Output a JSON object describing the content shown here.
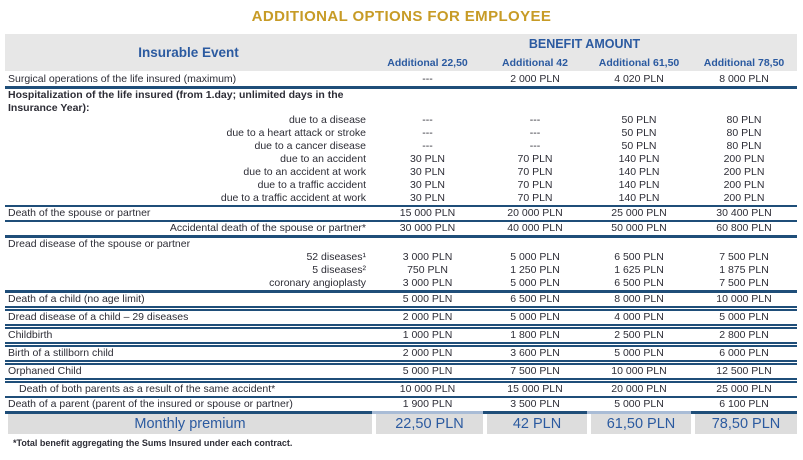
{
  "title": "ADDITIONAL OPTIONS FOR EMPLOYEE",
  "colors": {
    "title_gold": "#C79B26",
    "header_blue": "#2B5AA0",
    "border_navy": "#1F4E79",
    "border_light": "#A9BCD6",
    "header_band_gray": "#E7E7E7",
    "premium_band_gray": "#DDDDDD",
    "text": "#2D2D36"
  },
  "table": {
    "header": {
      "insurable_event": "Insurable Event",
      "benefit_amount": "BENEFIT AMOUNT",
      "columns": [
        "Additional 22,50",
        "Additional 42",
        "Additional 61,50",
        "Additional 78,50"
      ]
    },
    "rows": [
      {
        "label": "Surgical operations of the life insured (maximum)",
        "align": "left",
        "values": [
          "---",
          "2 000 PLN",
          "4 020 PLN",
          "8 000 PLN"
        ],
        "bb": "s3"
      },
      {
        "label": "Hospitalization of the life insured (from 1.day; unlimited days in the Insurance Year):",
        "align": "left",
        "bold": true,
        "values": []
      },
      {
        "label": "due to a disease",
        "align": "right",
        "values": [
          "---",
          "---",
          "50 PLN",
          "80 PLN"
        ]
      },
      {
        "label": "due to a heart attack or stroke",
        "align": "right",
        "values": [
          "---",
          "---",
          "50 PLN",
          "80 PLN"
        ]
      },
      {
        "label": "due to a cancer disease",
        "align": "right",
        "values": [
          "---",
          "---",
          "50 PLN",
          "80 PLN"
        ]
      },
      {
        "label": "due to an accident",
        "align": "right",
        "values": [
          "30 PLN",
          "70 PLN",
          "140 PLN",
          "200 PLN"
        ]
      },
      {
        "label": "due to an accident at work",
        "align": "right",
        "values": [
          "30 PLN",
          "70 PLN",
          "140 PLN",
          "200 PLN"
        ]
      },
      {
        "label": "due to a traffic accident",
        "align": "right",
        "values": [
          "30 PLN",
          "70 PLN",
          "140 PLN",
          "200 PLN"
        ]
      },
      {
        "label": "due to a traffic accident at work",
        "align": "right",
        "values": [
          "30 PLN",
          "70 PLN",
          "140 PLN",
          "200 PLN"
        ]
      },
      {
        "label": "Death of the spouse or partner",
        "align": "left",
        "values": [
          "15 000 PLN",
          "20 000 PLN",
          "25 000 PLN",
          "30 400 PLN"
        ],
        "bt": "s2"
      },
      {
        "label": "Accidental death of the spouse or partner*",
        "align": "right",
        "values": [
          "30 000 PLN",
          "40 000 PLN",
          "50 000 PLN",
          "60 800 PLN"
        ],
        "bt": "s2",
        "bb": "s3"
      },
      {
        "label": "Dread disease of the spouse or partner",
        "align": "left",
        "values": []
      },
      {
        "label": "52 diseases¹",
        "align": "right",
        "values": [
          "3 000 PLN",
          "5 000 PLN",
          "6 500 PLN",
          "7 500 PLN"
        ]
      },
      {
        "label": "5 diseases²",
        "align": "right",
        "values": [
          "750 PLN",
          "1 250 PLN",
          "1 625 PLN",
          "1 875 PLN"
        ]
      },
      {
        "label": "coronary angioplasty",
        "align": "right",
        "values": [
          "3 000 PLN",
          "5 000 PLN",
          "6 500 PLN",
          "7 500 PLN"
        ]
      },
      {
        "label": "Death of a child (no age limit)",
        "align": "left",
        "values": [
          "5 000 PLN",
          "6 500 PLN",
          "8 000 PLN",
          "10 000 PLN"
        ],
        "bt": "s3"
      },
      {
        "label": "Dread disease of a child – 29 diseases",
        "align": "left",
        "values": [
          "2 000 PLN",
          "5 000 PLN",
          "4 000 PLN",
          "5 000 PLN"
        ],
        "bt": "d"
      },
      {
        "label": "Childbirth",
        "align": "left",
        "values": [
          "1 000 PLN",
          "1 800 PLN",
          "2 500 PLN",
          "2 800 PLN"
        ],
        "bt": "d"
      },
      {
        "label": "Birth of a stillborn child",
        "align": "left",
        "values": [
          "2 000 PLN",
          "3 600 PLN",
          "5 000 PLN",
          "6 000 PLN"
        ],
        "bt": "d"
      },
      {
        "label": "Orphaned Child",
        "align": "left",
        "values": [
          "5 000 PLN",
          "7 500 PLN",
          "10 000 PLN",
          "12 500 PLN"
        ],
        "bt": "d"
      },
      {
        "label": "Death of both parents as a result of the same accident*",
        "align": "indent",
        "values": [
          "10 000 PLN",
          "15 000 PLN",
          "20 000 PLN",
          "25 000 PLN"
        ],
        "bt": "d"
      },
      {
        "label": "Death of a parent (parent of the insured or spouse or partner)",
        "align": "left",
        "values": [
          "1 900 PLN",
          "3 500 PLN",
          "5 000 PLN",
          "6 100 PLN"
        ],
        "bt": "s2",
        "bb": "seg"
      }
    ]
  },
  "premium": {
    "label": "Monthly premium",
    "values": [
      "22,50 PLN",
      "42 PLN",
      "61,50 PLN",
      "78,50 PLN"
    ]
  },
  "footnote": "*Total benefit aggregating the Sums Insured under each contract."
}
